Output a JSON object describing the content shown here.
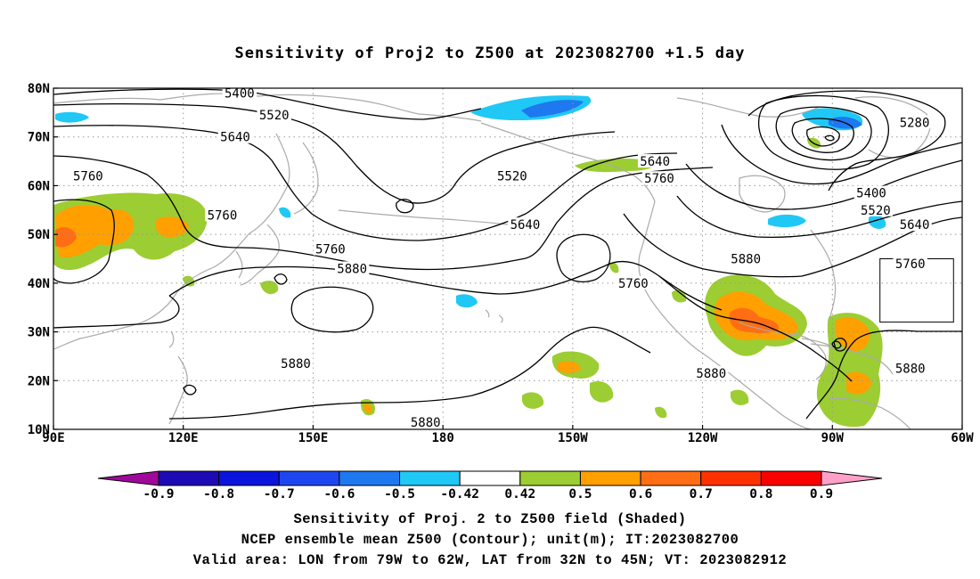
{
  "title": "Sensitivity of Proj2 to Z500 at 2023082700 +1.5 day",
  "map": {
    "lon_range": [
      90,
      300
    ],
    "lat_range": [
      10,
      80
    ],
    "grid": true,
    "lat_ticks": [
      {
        "lat": 80,
        "label": "80N"
      },
      {
        "lat": 70,
        "label": "70N"
      },
      {
        "lat": 60,
        "label": "60N"
      },
      {
        "lat": 50,
        "label": "50N"
      },
      {
        "lat": 40,
        "label": "40N"
      },
      {
        "lat": 30,
        "label": "30N"
      },
      {
        "lat": 20,
        "label": "20N"
      },
      {
        "lat": 10,
        "label": "10N"
      }
    ],
    "lon_ticks": [
      {
        "lon": 90,
        "label": "90E"
      },
      {
        "lon": 120,
        "label": "120E"
      },
      {
        "lon": 150,
        "label": "150E"
      },
      {
        "lon": 180,
        "label": "180"
      },
      {
        "lon": 210,
        "label": "150W"
      },
      {
        "lon": 240,
        "label": "120W"
      },
      {
        "lon": 270,
        "label": "90W"
      },
      {
        "lon": 300,
        "label": "60W"
      }
    ],
    "valid_box": {
      "lon": [
        281,
        298
      ],
      "lat": [
        32,
        45
      ]
    },
    "contour_labels": [
      {
        "text": "5400",
        "lon": 133,
        "lat": 79
      },
      {
        "text": "5520",
        "lon": 141,
        "lat": 74.5
      },
      {
        "text": "5640",
        "lon": 132,
        "lat": 70
      },
      {
        "text": "5760",
        "lon": 98,
        "lat": 62
      },
      {
        "text": "5760",
        "lon": 129,
        "lat": 54
      },
      {
        "text": "5520",
        "lon": 196,
        "lat": 62
      },
      {
        "text": "5640",
        "lon": 229,
        "lat": 65
      },
      {
        "text": "5760",
        "lon": 230,
        "lat": 61.5
      },
      {
        "text": "5640",
        "lon": 199,
        "lat": 52
      },
      {
        "text": "5760",
        "lon": 154,
        "lat": 47
      },
      {
        "text": "5880",
        "lon": 159,
        "lat": 43
      },
      {
        "text": "5760",
        "lon": 224,
        "lat": 40
      },
      {
        "text": "5880",
        "lon": 250,
        "lat": 45
      },
      {
        "text": "5280",
        "lon": 289,
        "lat": 73
      },
      {
        "text": "5400",
        "lon": 279,
        "lat": 58.5
      },
      {
        "text": "5520",
        "lon": 280,
        "lat": 55
      },
      {
        "text": "5640",
        "lon": 289,
        "lat": 52
      },
      {
        "text": "5760",
        "lon": 288,
        "lat": 44
      },
      {
        "text": "5880",
        "lon": 146,
        "lat": 23.5
      },
      {
        "text": "5880",
        "lon": 242,
        "lat": 21.5
      },
      {
        "text": "5880",
        "lon": 176,
        "lat": 11.5
      },
      {
        "text": "5880",
        "lon": 288,
        "lat": 22.5
      }
    ]
  },
  "colorbar": {
    "labels": [
      "-0.9",
      "-0.8",
      "-0.7",
      "-0.6",
      "-0.5",
      "-0.42",
      "0.42",
      "0.5",
      "0.6",
      "0.7",
      "0.8",
      "0.9"
    ],
    "colors": [
      "#a0089c",
      "#1e0ab4",
      "#0a14dc",
      "#1e46f0",
      "#1e78f0",
      "#20c8f5",
      "#ffffff",
      "#9ccd32",
      "#ffa000",
      "#ff6e14",
      "#ff3200",
      "#fa0000",
      "#ffa0c8"
    ],
    "shaded_colors": {
      "neg_light": "#20c8f5",
      "neg_mid": "#1e78f0",
      "pos_green": "#9ccd32",
      "pos_orange": "#ffa000",
      "pos_red": "#ff6e14"
    }
  },
  "caption": {
    "line1": "Sensitivity of Proj. 2 to Z500 field (Shaded)",
    "line2": "NCEP ensemble mean Z500 (Contour); unit(m); IT:2023082700",
    "line3": "Valid area: LON from 79W to 62W, LAT from 32N to 45N; VT: 2023082912"
  }
}
